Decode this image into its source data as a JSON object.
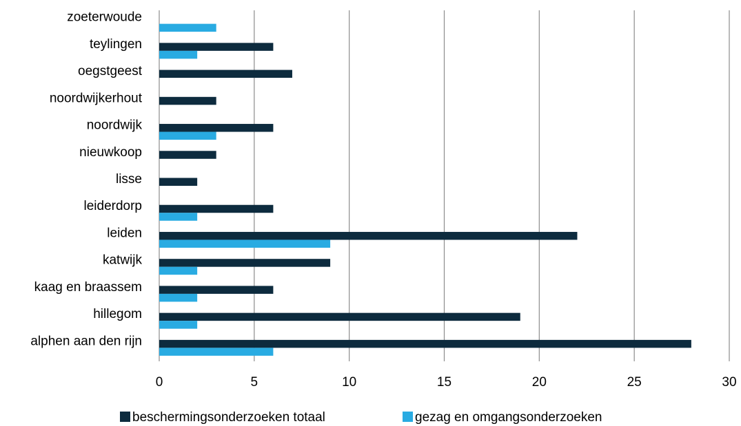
{
  "chart_data": {
    "type": "bar",
    "orientation": "horizontal",
    "title": "",
    "xlabel": "",
    "ylabel": "",
    "categories": [
      "alphen aan den rijn",
      "hillegom",
      "kaag en braassem",
      "katwijk",
      "leiden",
      "leiderdorp",
      "lisse",
      "nieuwkoop",
      "noordwijk",
      "noordwijkerhout",
      "oegstgeest",
      "teylingen",
      "zoeterwoude"
    ],
    "series": [
      {
        "name": "beschermingsonderzoeken totaal",
        "color": "#0d2b3e",
        "values": [
          28,
          19,
          6,
          9,
          22,
          6,
          2,
          3,
          6,
          3,
          7,
          6,
          0
        ]
      },
      {
        "name": "gezag en omgangsonderzoeken",
        "color": "#29abe2",
        "values": [
          6,
          2,
          2,
          2,
          9,
          2,
          0,
          0,
          3,
          0,
          0,
          2,
          3
        ]
      }
    ],
    "xlim": [
      0,
      30
    ],
    "xticks": [
      "0",
      "5",
      "10",
      "15",
      "20",
      "25",
      "30"
    ],
    "grid": "vertical",
    "legend_position": "bottom"
  }
}
